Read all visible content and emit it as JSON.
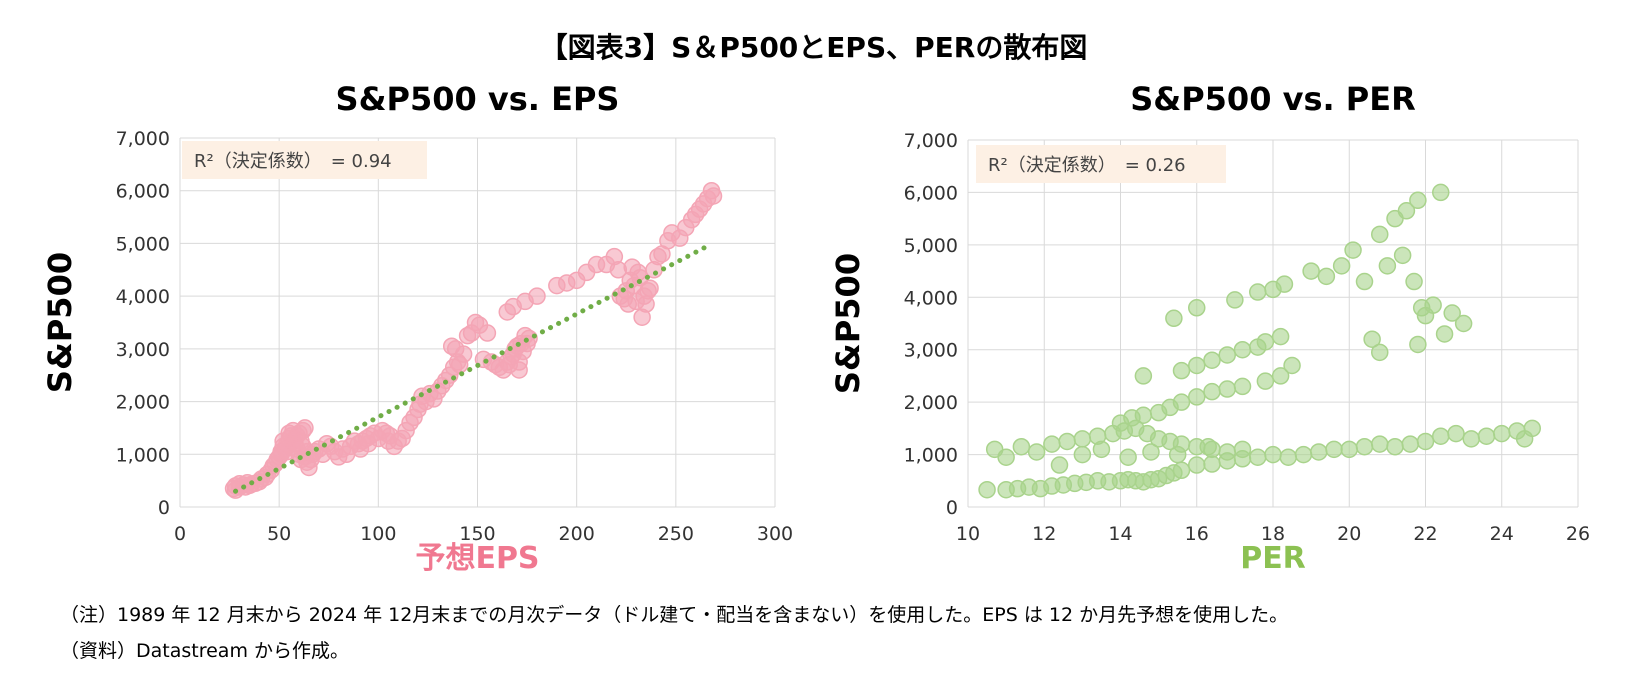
{
  "figure_title": "【図表3】S＆P500とEPS、PERの散布図",
  "notes": {
    "note1": "（注）1989 年 12 月末から 2024 年 12月末までの月次データ（ドル建て・配当を含まない）を使用した。EPS は 12 か月先予想を使用した。",
    "source": "（資料）Datastream から作成。"
  },
  "chart_data": [
    {
      "type": "scatter",
      "title": "S&P500 vs. EPS",
      "xlabel": "予想EPS",
      "ylabel": "S&P500",
      "xlim": [
        0,
        300
      ],
      "ylim": [
        0,
        7000
      ],
      "xticks": [
        0,
        50,
        100,
        150,
        200,
        250,
        300
      ],
      "yticks": [
        0,
        1000,
        2000,
        3000,
        4000,
        5000,
        6000,
        7000
      ],
      "xtick_labels": [
        "0",
        "50",
        "100",
        "150",
        "200",
        "250",
        "300"
      ],
      "ytick_labels": [
        "0",
        "1,000",
        "2,000",
        "3,000",
        "4,000",
        "5,000",
        "6,000",
        "7,000"
      ],
      "grid": true,
      "annotation": "R²（決定係数）　= 0.94",
      "point_color": "#f4a5b5",
      "label_color": "#f07890",
      "trendline": {
        "x": [
          28,
          267
        ],
        "y": [
          300,
          4970
        ],
        "color": "#70ad47",
        "style": "dotted"
      },
      "points": [
        [
          27,
          350
        ],
        [
          28,
          320
        ],
        [
          28,
          400
        ],
        [
          30,
          380
        ],
        [
          30,
          440
        ],
        [
          32,
          420
        ],
        [
          33,
          380
        ],
        [
          34,
          460
        ],
        [
          35,
          410
        ],
        [
          36,
          430
        ],
        [
          38,
          450
        ],
        [
          40,
          480
        ],
        [
          41,
          530
        ],
        [
          43,
          560
        ],
        [
          44,
          620
        ],
        [
          46,
          700
        ],
        [
          47,
          780
        ],
        [
          48,
          820
        ],
        [
          49,
          900
        ],
        [
          50,
          950
        ],
        [
          51,
          1000
        ],
        [
          51,
          1050
        ],
        [
          52,
          1150
        ],
        [
          52,
          1250
        ],
        [
          53,
          1100
        ],
        [
          54,
          1050
        ],
        [
          54,
          1200
        ],
        [
          55,
          1300
        ],
        [
          55,
          1400
        ],
        [
          56,
          1350
        ],
        [
          57,
          1250
        ],
        [
          57,
          1450
        ],
        [
          58,
          1300
        ],
        [
          58,
          1200
        ],
        [
          59,
          1100
        ],
        [
          59,
          1350
        ],
        [
          60,
          1400
        ],
        [
          60,
          1000
        ],
        [
          61,
          900
        ],
        [
          61,
          1250
        ],
        [
          62,
          1450
        ],
        [
          62,
          1150
        ],
        [
          63,
          1500
        ],
        [
          63,
          950
        ],
        [
          64,
          850
        ],
        [
          64,
          1050
        ],
        [
          65,
          750
        ],
        [
          66,
          900
        ],
        [
          67,
          1000
        ],
        [
          68,
          1050
        ],
        [
          70,
          1100
        ],
        [
          72,
          1000
        ],
        [
          74,
          1200
        ],
        [
          76,
          1150
        ],
        [
          78,
          1050
        ],
        [
          80,
          950
        ],
        [
          82,
          1100
        ],
        [
          84,
          1000
        ],
        [
          86,
          1150
        ],
        [
          88,
          1250
        ],
        [
          90,
          1200
        ],
        [
          91,
          1100
        ],
        [
          92,
          1250
        ],
        [
          94,
          1300
        ],
        [
          95,
          1200
        ],
        [
          96,
          1350
        ],
        [
          98,
          1400
        ],
        [
          100,
          1300
        ],
        [
          102,
          1450
        ],
        [
          104,
          1400
        ],
        [
          105,
          1250
        ],
        [
          106,
          1350
        ],
        [
          108,
          1150
        ],
        [
          110,
          1250
        ],
        [
          112,
          1300
        ],
        [
          114,
          1450
        ],
        [
          116,
          1600
        ],
        [
          118,
          1700
        ],
        [
          120,
          1850
        ],
        [
          121,
          1950
        ],
        [
          122,
          2100
        ],
        [
          124,
          2000
        ],
        [
          126,
          2150
        ],
        [
          128,
          2050
        ],
        [
          130,
          2200
        ],
        [
          132,
          2300
        ],
        [
          134,
          2400
        ],
        [
          136,
          2500
        ],
        [
          138,
          2650
        ],
        [
          140,
          2750
        ],
        [
          137,
          3050
        ],
        [
          139,
          3000
        ],
        [
          141,
          2700
        ],
        [
          143,
          2900
        ],
        [
          145,
          3250
        ],
        [
          147,
          3300
        ],
        [
          149,
          3500
        ],
        [
          151,
          3450
        ],
        [
          153,
          2800
        ],
        [
          155,
          3300
        ],
        [
          157,
          2750
        ],
        [
          159,
          2700
        ],
        [
          161,
          2650
        ],
        [
          163,
          2600
        ],
        [
          165,
          2750
        ],
        [
          166,
          2700
        ],
        [
          167,
          2850
        ],
        [
          168,
          2900
        ],
        [
          169,
          3000
        ],
        [
          170,
          3050
        ],
        [
          171,
          2600
        ],
        [
          171,
          2750
        ],
        [
          172,
          3100
        ],
        [
          173,
          2950
        ],
        [
          174,
          3250
        ],
        [
          175,
          3100
        ],
        [
          176,
          3200
        ],
        [
          165,
          3700
        ],
        [
          168,
          3800
        ],
        [
          174,
          3900
        ],
        [
          180,
          4000
        ],
        [
          190,
          4200
        ],
        [
          195,
          4250
        ],
        [
          200,
          4300
        ],
        [
          205,
          4450
        ],
        [
          210,
          4600
        ],
        [
          215,
          4600
        ],
        [
          219,
          4750
        ],
        [
          221,
          4500
        ],
        [
          222,
          4000
        ],
        [
          224,
          3950
        ],
        [
          225,
          4100
        ],
        [
          226,
          3850
        ],
        [
          227,
          4300
        ],
        [
          228,
          4550
        ],
        [
          229,
          4200
        ],
        [
          230,
          3900
        ],
        [
          231,
          4450
        ],
        [
          232,
          4350
        ],
        [
          233,
          3600
        ],
        [
          234,
          4000
        ],
        [
          235,
          3850
        ],
        [
          236,
          4100
        ],
        [
          237,
          4150
        ],
        [
          239,
          4500
        ],
        [
          241,
          4750
        ],
        [
          243,
          4800
        ],
        [
          246,
          5050
        ],
        [
          248,
          5200
        ],
        [
          252,
          5100
        ],
        [
          255,
          5300
        ],
        [
          258,
          5450
        ],
        [
          260,
          5550
        ],
        [
          262,
          5650
        ],
        [
          264,
          5750
        ],
        [
          266,
          5850
        ],
        [
          268,
          6000
        ],
        [
          269,
          5900
        ]
      ]
    },
    {
      "type": "scatter",
      "title": "S&P500 vs. PER",
      "xlabel": "PER",
      "ylabel": "S&P500",
      "xlim": [
        10,
        26
      ],
      "ylim": [
        0,
        7000
      ],
      "xticks": [
        10,
        12,
        14,
        16,
        18,
        20,
        22,
        24,
        26
      ],
      "yticks": [
        0,
        1000,
        2000,
        3000,
        4000,
        5000,
        6000,
        7000
      ],
      "xtick_labels": [
        "10",
        "12",
        "14",
        "16",
        "18",
        "20",
        "22",
        "24",
        "26"
      ],
      "ytick_labels": [
        "0",
        "1,000",
        "2,000",
        "3,000",
        "4,000",
        "5,000",
        "6,000",
        "7,000"
      ],
      "grid": true,
      "annotation": "R²（決定係数）　= 0.26",
      "point_color": "#a9d38c",
      "label_color": "#8cc152",
      "points": [
        [
          10.5,
          330
        ],
        [
          11.0,
          330
        ],
        [
          11.3,
          350
        ],
        [
          11.6,
          380
        ],
        [
          11.9,
          350
        ],
        [
          12.2,
          400
        ],
        [
          12.5,
          420
        ],
        [
          12.8,
          450
        ],
        [
          13.1,
          470
        ],
        [
          13.4,
          500
        ],
        [
          13.7,
          480
        ],
        [
          14.0,
          500
        ],
        [
          14.2,
          520
        ],
        [
          14.4,
          500
        ],
        [
          14.6,
          480
        ],
        [
          14.8,
          520
        ],
        [
          15.0,
          540
        ],
        [
          15.2,
          600
        ],
        [
          15.4,
          650
        ],
        [
          15.6,
          700
        ],
        [
          16.0,
          800
        ],
        [
          16.4,
          820
        ],
        [
          16.8,
          880
        ],
        [
          17.2,
          920
        ],
        [
          17.6,
          950
        ],
        [
          18.0,
          1000
        ],
        [
          18.4,
          950
        ],
        [
          18.8,
          1000
        ],
        [
          19.2,
          1050
        ],
        [
          19.6,
          1100
        ],
        [
          20.0,
          1100
        ],
        [
          20.4,
          1150
        ],
        [
          20.8,
          1200
        ],
        [
          21.2,
          1150
        ],
        [
          21.6,
          1200
        ],
        [
          22.0,
          1250
        ],
        [
          22.4,
          1350
        ],
        [
          22.8,
          1400
        ],
        [
          23.2,
          1300
        ],
        [
          23.6,
          1350
        ],
        [
          24.0,
          1400
        ],
        [
          24.4,
          1450
        ],
        [
          24.8,
          1500
        ],
        [
          24.6,
          1300
        ],
        [
          10.7,
          1100
        ],
        [
          11.0,
          950
        ],
        [
          11.4,
          1150
        ],
        [
          11.8,
          1050
        ],
        [
          12.2,
          1200
        ],
        [
          12.6,
          1250
        ],
        [
          13.0,
          1300
        ],
        [
          13.4,
          1350
        ],
        [
          13.8,
          1400
        ],
        [
          14.1,
          1450
        ],
        [
          14.4,
          1500
        ],
        [
          14.7,
          1400
        ],
        [
          15.0,
          1300
        ],
        [
          15.3,
          1250
        ],
        [
          15.6,
          1200
        ],
        [
          16.0,
          1150
        ],
        [
          16.4,
          1100
        ],
        [
          16.8,
          1050
        ],
        [
          17.2,
          1100
        ],
        [
          14.0,
          1600
        ],
        [
          14.3,
          1700
        ],
        [
          14.6,
          1750
        ],
        [
          15.0,
          1800
        ],
        [
          15.3,
          1900
        ],
        [
          15.6,
          2000
        ],
        [
          16.0,
          2100
        ],
        [
          16.4,
          2200
        ],
        [
          16.8,
          2250
        ],
        [
          17.2,
          2300
        ],
        [
          17.8,
          2400
        ],
        [
          18.2,
          2500
        ],
        [
          18.5,
          2700
        ],
        [
          15.6,
          2600
        ],
        [
          16.0,
          2700
        ],
        [
          16.4,
          2800
        ],
        [
          16.8,
          2900
        ],
        [
          17.2,
          3000
        ],
        [
          17.6,
          3050
        ],
        [
          14.6,
          2500
        ],
        [
          15.4,
          3600
        ],
        [
          16.0,
          3800
        ],
        [
          17.0,
          3950
        ],
        [
          17.6,
          4100
        ],
        [
          18.0,
          4150
        ],
        [
          18.3,
          4250
        ],
        [
          17.8,
          3150
        ],
        [
          18.2,
          3250
        ],
        [
          19.0,
          4500
        ],
        [
          19.4,
          4400
        ],
        [
          19.8,
          4600
        ],
        [
          20.1,
          4900
        ],
        [
          20.4,
          4300
        ],
        [
          20.8,
          5200
        ],
        [
          21.2,
          5500
        ],
        [
          21.5,
          5650
        ],
        [
          21.8,
          5850
        ],
        [
          22.4,
          6000
        ],
        [
          21.0,
          4600
        ],
        [
          21.4,
          4800
        ],
        [
          21.7,
          4300
        ],
        [
          21.9,
          3800
        ],
        [
          22.0,
          3650
        ],
        [
          22.2,
          3850
        ],
        [
          22.5,
          3300
        ],
        [
          22.7,
          3700
        ],
        [
          23.0,
          3500
        ],
        [
          21.8,
          3100
        ],
        [
          20.6,
          3200
        ],
        [
          20.8,
          2950
        ],
        [
          13.0,
          1000
        ],
        [
          13.5,
          1100
        ],
        [
          14.2,
          950
        ],
        [
          14.8,
          1050
        ],
        [
          15.5,
          1000
        ],
        [
          16.3,
          1150
        ],
        [
          12.4,
          800
        ]
      ]
    }
  ]
}
